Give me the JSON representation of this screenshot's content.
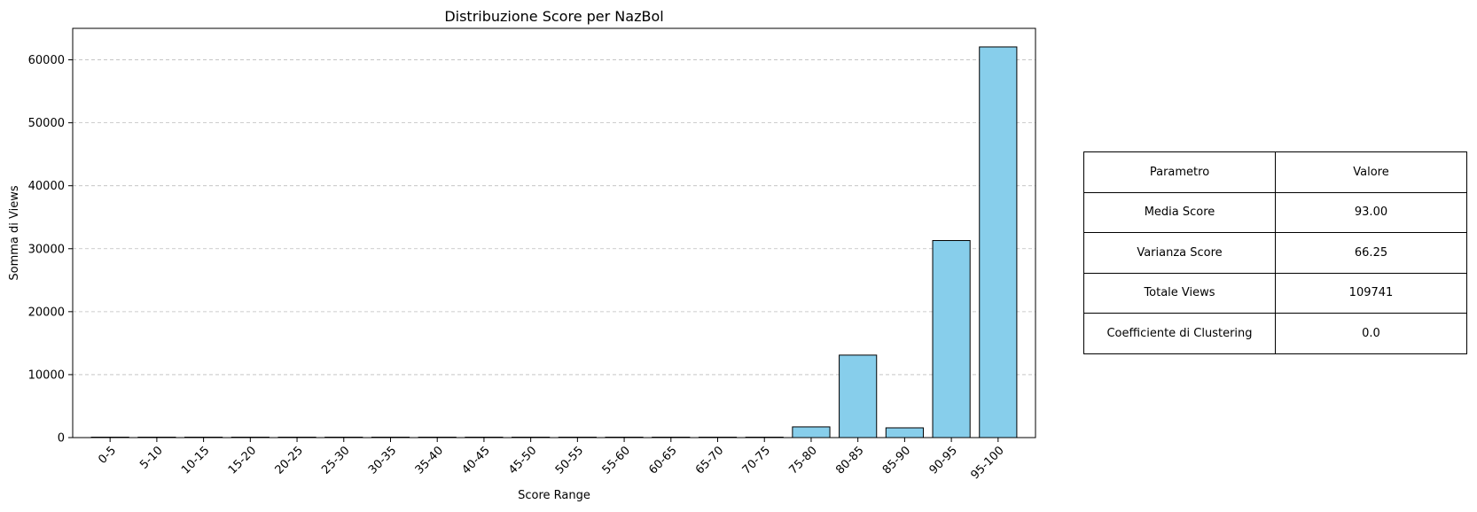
{
  "chart_data": {
    "type": "bar",
    "title": "Distribuzione Score per NazBol",
    "xlabel": "Score Range",
    "ylabel": "Somma di Views",
    "categories": [
      "0-5",
      "5-10",
      "10-15",
      "15-20",
      "20-25",
      "25-30",
      "30-35",
      "35-40",
      "40-45",
      "45-50",
      "50-55",
      "55-60",
      "60-65",
      "65-70",
      "70-75",
      "75-80",
      "80-85",
      "85-90",
      "90-95",
      "95-100"
    ],
    "values": [
      0,
      0,
      0,
      0,
      0,
      0,
      0,
      0,
      0,
      0,
      0,
      0,
      0,
      0,
      0,
      1700,
      13100,
      1550,
      31300,
      62050
    ],
    "ylim": [
      0,
      65000
    ],
    "yticks": [
      0,
      10000,
      20000,
      30000,
      40000,
      50000,
      60000
    ],
    "grid": "y dashed",
    "bar_color": "#87ceeb",
    "edge_color": "#000000"
  },
  "table": {
    "header": [
      "Parametro",
      "Valore"
    ],
    "rows": [
      [
        "Media Score",
        "93.00"
      ],
      [
        "Varianza Score",
        "66.25"
      ],
      [
        "Totale Views",
        "109741"
      ],
      [
        "Coefficiente di Clustering",
        "0.0"
      ]
    ]
  }
}
